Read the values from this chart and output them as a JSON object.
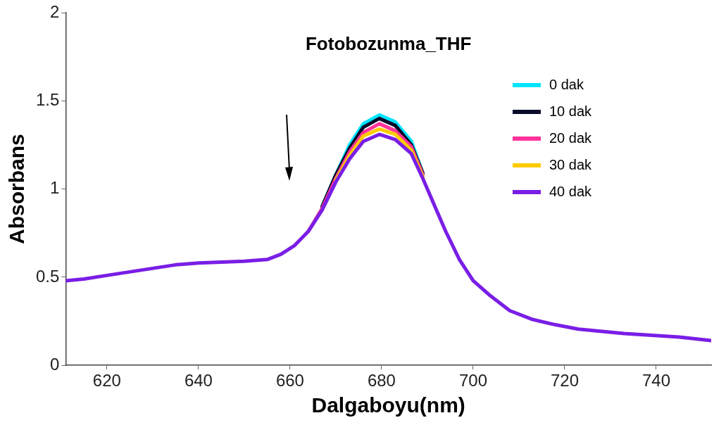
{
  "chart_data": {
    "type": "line",
    "title": "Fotobozunma_THF",
    "xlabel": "Dalgaboyu(nm)",
    "ylabel": "Absorbans",
    "x": [
      611,
      615,
      620,
      625,
      630,
      635,
      640,
      645,
      650,
      655,
      658,
      661,
      664,
      667,
      670,
      673,
      676,
      679.5,
      683,
      686.5,
      689,
      691.5,
      694,
      697,
      700,
      703.5,
      708,
      713,
      718,
      723,
      733,
      745,
      752
    ],
    "series": [
      {
        "name": "0 dak",
        "color": "#00e5ff",
        "values": [
          null,
          null,
          null,
          null,
          null,
          null,
          null,
          null,
          null,
          null,
          null,
          null,
          null,
          0.9,
          1.08,
          1.25,
          1.37,
          1.42,
          1.38,
          1.27,
          1.09,
          null,
          null,
          null,
          null,
          null,
          null,
          null,
          null,
          null,
          null,
          null,
          null
        ]
      },
      {
        "name": "10 dak",
        "color": "#0a0a2a",
        "values": [
          null,
          null,
          null,
          null,
          null,
          null,
          null,
          null,
          null,
          null,
          null,
          null,
          null,
          0.9,
          1.08,
          1.23,
          1.35,
          1.4,
          1.36,
          1.25,
          1.09,
          null,
          null,
          null,
          null,
          null,
          null,
          null,
          null,
          null,
          null,
          null,
          null
        ]
      },
      {
        "name": "20 dak",
        "color": "#ff3399",
        "values": [
          null,
          null,
          null,
          null,
          null,
          null,
          null,
          null,
          null,
          null,
          null,
          null,
          0.76,
          0.89,
          1.06,
          1.21,
          1.32,
          1.37,
          1.33,
          1.24,
          1.08,
          null,
          null,
          null,
          null,
          null,
          null,
          null,
          null,
          null,
          null,
          null,
          null
        ]
      },
      {
        "name": "30 dak",
        "color": "#ffcc00",
        "values": [
          null,
          null,
          null,
          null,
          null,
          null,
          null,
          null,
          null,
          null,
          null,
          null,
          null,
          null,
          1.05,
          1.19,
          1.3,
          1.34,
          1.31,
          1.22,
          1.07,
          null,
          null,
          null,
          null,
          null,
          null,
          null,
          null,
          null,
          null,
          null,
          null
        ]
      },
      {
        "name": "40 dak",
        "color": "#7a1ee6",
        "values": [
          0.48,
          0.49,
          0.51,
          0.53,
          0.55,
          0.57,
          0.58,
          0.585,
          0.59,
          0.6,
          0.63,
          0.68,
          0.76,
          0.88,
          1.04,
          1.17,
          1.27,
          1.31,
          1.28,
          1.2,
          1.06,
          0.91,
          0.76,
          0.6,
          0.48,
          0.4,
          0.31,
          0.26,
          0.23,
          0.205,
          0.18,
          0.16,
          0.14
        ]
      }
    ],
    "xlim": [
      611,
      752
    ],
    "xticks": [
      620,
      640,
      660,
      680,
      700,
      720,
      740
    ],
    "ylim": [
      0,
      2
    ],
    "yticks": [
      0,
      0.5,
      1,
      1.5,
      2
    ],
    "grid": false,
    "legend": "top right",
    "marker": "none",
    "line_style": "solid"
  }
}
